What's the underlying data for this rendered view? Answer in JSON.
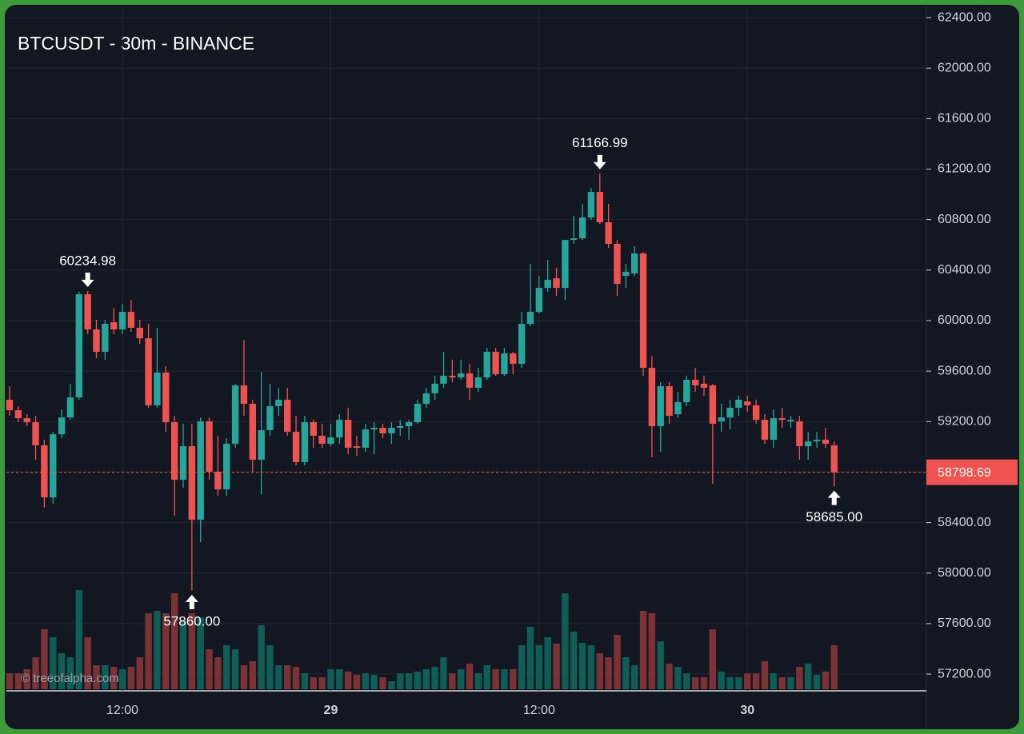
{
  "chart_data": {
    "type": "candlestick",
    "title": "BTCUSDT - 30m - BINANCE",
    "watermark": "© treeofalpha.com",
    "categories": [
      null,
      null,
      null,
      null,
      null,
      null,
      null,
      null,
      null,
      null,
      null,
      null,
      null,
      "12:00",
      null,
      null,
      null,
      null,
      null,
      null,
      null,
      null,
      null,
      null,
      null,
      null,
      null,
      null,
      null,
      null,
      null,
      null,
      null,
      null,
      null,
      null,
      null,
      "29",
      null,
      null,
      null,
      null,
      null,
      null,
      null,
      null,
      null,
      null,
      null,
      null,
      null,
      null,
      null,
      null,
      null,
      null,
      null,
      null,
      null,
      null,
      null,
      "12:00",
      null,
      null,
      null,
      null,
      null,
      null,
      null,
      null,
      null,
      null,
      null,
      null,
      null,
      null,
      null,
      null,
      null,
      null,
      null,
      null,
      null,
      null,
      null,
      "30",
      null,
      null,
      null,
      null,
      null,
      null,
      null,
      null,
      null,
      null
    ],
    "open": [
      59373,
      59290,
      59227,
      59195,
      59012,
      58600,
      59100,
      59233,
      59392,
      60209,
      59930,
      59753,
      59987,
      59930,
      60069,
      59943,
      59860,
      59329,
      59588,
      59195,
      58739,
      59005,
      58422,
      59202,
      58803,
      58663,
      59024,
      59487,
      59341,
      58898,
      59132,
      59322,
      59373,
      59119,
      58879,
      59195,
      59088,
      59024,
      59075,
      59214,
      59005,
      58993,
      59138,
      59151,
      59107,
      59151,
      59164,
      59195,
      59341,
      59424,
      59500,
      59563,
      59550,
      59582,
      59468,
      59550,
      59753,
      59575,
      59740,
      59658,
      59974,
      60069,
      60259,
      60335,
      60259,
      60639,
      60652,
      60817,
      61019,
      60779,
      60608,
      60355,
      60374,
      60532,
      59626,
      59164,
      59480,
      59259,
      59354,
      59531,
      59500,
      59487,
      59202,
      59233,
      59309,
      59360,
      59329,
      59214,
      59056,
      59227,
      59202,
      59202,
      59005,
      59043,
      59056,
      59012
    ],
    "high": [
      59480,
      59322,
      59259,
      59246,
      59056,
      59119,
      59297,
      59500,
      60228,
      60234.98,
      60006,
      60006,
      60101,
      60133,
      60164,
      60006,
      59974,
      59943,
      59639,
      59246,
      59183,
      59183,
      59233,
      59233,
      59088,
      59069,
      59500,
      59848,
      59373,
      59594,
      59500,
      59468,
      59468,
      59246,
      59246,
      59214,
      59183,
      59183,
      59259,
      59309,
      59088,
      59183,
      59195,
      59183,
      59195,
      59214,
      59214,
      59373,
      59468,
      59563,
      59753,
      59689,
      59689,
      59658,
      59626,
      59784,
      59784,
      59784,
      59753,
      60069,
      60450,
      60355,
      60481,
      60418,
      60639,
      60829,
      60925,
      61051,
      61166.99,
      60925,
      60639,
      60450,
      60589,
      60544,
      59721,
      59512,
      59512,
      59436,
      59563,
      59626,
      59563,
      59500,
      59341,
      59373,
      59405,
      59405,
      59373,
      59259,
      59297,
      59309,
      59246,
      59246,
      59119,
      59119,
      59151,
      59043
    ],
    "low": [
      59246,
      59195,
      59164,
      58898,
      58518,
      58549,
      59069,
      59214,
      59373,
      59892,
      59702,
      59689,
      59892,
      59892,
      59911,
      59816,
      59309,
      59309,
      59119,
      58454,
      58676,
      57860,
      58245,
      58739,
      58612,
      58612,
      58993,
      59246,
      58803,
      58625,
      59088,
      59246,
      59088,
      58853,
      58853,
      58993,
      58993,
      59005,
      59024,
      58942,
      58929,
      58961,
      58942,
      59069,
      59024,
      59088,
      59056,
      59183,
      59309,
      59373,
      59468,
      59512,
      59531,
      59373,
      59436,
      59531,
      59563,
      59563,
      59575,
      59626,
      59955,
      60057,
      60228,
      60196,
      60164,
      60608,
      60639,
      60798,
      60766,
      60576,
      60196,
      60259,
      60355,
      59563,
      58917,
      58961,
      59183,
      59233,
      59322,
      59436,
      59405,
      58707,
      59119,
      59138,
      59246,
      59278,
      59183,
      59024,
      58993,
      59151,
      59151,
      58898,
      58898,
      58993,
      58993,
      58685
    ],
    "close": [
      59290,
      59227,
      59195,
      59012,
      58600,
      59100,
      59233,
      59392,
      60209,
      59930,
      59753,
      59974,
      59930,
      60069,
      59943,
      59860,
      59329,
      59588,
      59195,
      58739,
      59005,
      58422,
      59202,
      58803,
      58663,
      59024,
      59487,
      59341,
      58898,
      59132,
      59322,
      59373,
      59119,
      58879,
      59195,
      59088,
      59024,
      59075,
      59214,
      58993,
      58993,
      59138,
      59151,
      59107,
      59151,
      59164,
      59195,
      59341,
      59424,
      59500,
      59563,
      59550,
      59582,
      59468,
      59550,
      59753,
      59575,
      59740,
      59658,
      59974,
      60069,
      60259,
      60323,
      60259,
      60639,
      60652,
      60817,
      61019,
      60779,
      60608,
      60291,
      60386,
      60532,
      59626,
      59164,
      59480,
      59246,
      59354,
      59531,
      59487,
      59468,
      59183,
      59233,
      59309,
      59373,
      59329,
      59214,
      59056,
      59227,
      59214,
      59214,
      59005,
      59043,
      59056,
      59024,
      58798.69
    ],
    "volume": [
      20,
      20,
      25,
      40,
      75,
      65,
      45,
      40,
      124,
      65,
      30,
      30,
      28,
      25,
      28,
      40,
      95,
      98,
      95,
      120,
      85,
      95,
      90,
      50,
      40,
      55,
      50,
      30,
      35,
      80,
      55,
      30,
      30,
      28,
      20,
      15,
      15,
      25,
      25,
      22,
      18,
      20,
      18,
      15,
      10,
      20,
      20,
      22,
      25,
      28,
      40,
      20,
      25,
      32,
      20,
      30,
      25,
      25,
      25,
      55,
      78,
      55,
      65,
      57,
      120,
      72,
      58,
      55,
      45,
      40,
      68,
      40,
      30,
      98,
      95,
      60,
      32,
      28,
      20,
      15,
      15,
      75,
      22,
      15,
      15,
      20,
      20,
      35,
      20,
      15,
      15,
      28,
      32,
      18,
      22,
      55
    ],
    "colors": {
      "up": "#26a69a",
      "down": "#ef5350",
      "volume_up": "#0e5d57",
      "volume_down": "#7b3235"
    },
    "ylim": [
      57080,
      62489
    ],
    "yticks": [
      {
        "value": 57200,
        "label": "57200.00"
      },
      {
        "value": 57600,
        "label": "57600.00"
      },
      {
        "value": 58000,
        "label": "58000.00"
      },
      {
        "value": 58400,
        "label": "58400.00"
      },
      {
        "value": 58800,
        "label": "58800.00"
      },
      {
        "value": 59200,
        "label": "59200.00"
      },
      {
        "value": 59600,
        "label": "59600.00"
      },
      {
        "value": 60000,
        "label": "60000.00"
      },
      {
        "value": 60400,
        "label": "60400.00"
      },
      {
        "value": 60800,
        "label": "60800.00"
      },
      {
        "value": 61200,
        "label": "61200.00"
      },
      {
        "value": 61600,
        "label": "61600.00"
      },
      {
        "value": 62000,
        "label": "62000.00"
      },
      {
        "value": 62400,
        "label": "62400.00"
      }
    ],
    "annotations": [
      {
        "value": 60234.98,
        "label": "60234.98"
      },
      {
        "value": 57860,
        "label": "57860.00"
      },
      {
        "value": 61166.99,
        "label": "61166.99"
      },
      {
        "value": 58685,
        "label": "58685.00"
      }
    ],
    "grid": true
  }
}
